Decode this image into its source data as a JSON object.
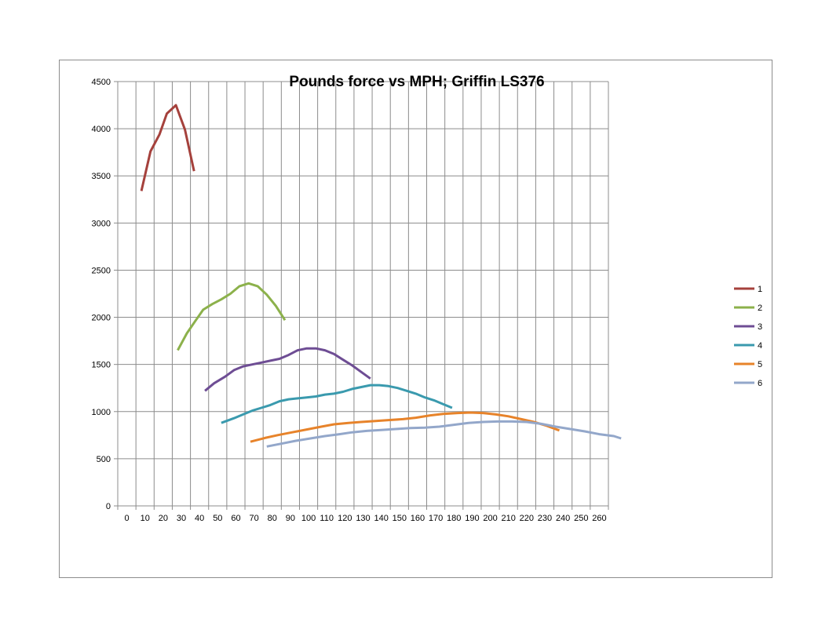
{
  "chart_data": {
    "type": "line",
    "title": "Pounds force vs MPH; Griffin LS376",
    "xlabel": "",
    "ylabel": "",
    "xlim": [
      0,
      270
    ],
    "ylim": [
      0,
      4500
    ],
    "x_ticks": [
      0,
      10,
      20,
      30,
      40,
      50,
      60,
      70,
      80,
      90,
      100,
      110,
      120,
      130,
      140,
      150,
      160,
      170,
      180,
      190,
      200,
      210,
      220,
      230,
      240,
      250,
      260
    ],
    "y_ticks": [
      0,
      500,
      1000,
      1500,
      2000,
      2500,
      3000,
      3500,
      4000,
      4500
    ],
    "grid": true,
    "legend_position": "right",
    "series": [
      {
        "name": "1",
        "color": "#A5413C",
        "points": [
          [
            13,
            3340
          ],
          [
            18,
            3760
          ],
          [
            23,
            3940
          ],
          [
            27,
            4160
          ],
          [
            32,
            4250
          ],
          [
            37,
            3990
          ],
          [
            42,
            3550
          ]
        ]
      },
      {
        "name": "2",
        "color": "#8CB14B",
        "points": [
          [
            33,
            1650
          ],
          [
            38,
            1830
          ],
          [
            43,
            1970
          ],
          [
            47,
            2080
          ],
          [
            52,
            2140
          ],
          [
            57,
            2190
          ],
          [
            62,
            2250
          ],
          [
            67,
            2330
          ],
          [
            72,
            2360
          ],
          [
            77,
            2330
          ],
          [
            82,
            2240
          ],
          [
            87,
            2120
          ],
          [
            92,
            1970
          ]
        ]
      },
      {
        "name": "3",
        "color": "#6E4D94",
        "points": [
          [
            48,
            1220
          ],
          [
            53,
            1300
          ],
          [
            59,
            1370
          ],
          [
            64,
            1440
          ],
          [
            69,
            1480
          ],
          [
            74,
            1500
          ],
          [
            79,
            1520
          ],
          [
            84,
            1540
          ],
          [
            89,
            1560
          ],
          [
            94,
            1600
          ],
          [
            99,
            1650
          ],
          [
            104,
            1670
          ],
          [
            109,
            1670
          ],
          [
            114,
            1650
          ],
          [
            119,
            1610
          ],
          [
            124,
            1550
          ],
          [
            129,
            1490
          ],
          [
            134,
            1420
          ],
          [
            139,
            1350
          ]
        ]
      },
      {
        "name": "4",
        "color": "#3A9AAE",
        "points": [
          [
            57,
            880
          ],
          [
            64,
            930
          ],
          [
            69,
            970
          ],
          [
            74,
            1010
          ],
          [
            79,
            1040
          ],
          [
            84,
            1070
          ],
          [
            89,
            1110
          ],
          [
            94,
            1130
          ],
          [
            99,
            1140
          ],
          [
            104,
            1150
          ],
          [
            109,
            1160
          ],
          [
            114,
            1180
          ],
          [
            119,
            1190
          ],
          [
            124,
            1210
          ],
          [
            129,
            1240
          ],
          [
            134,
            1260
          ],
          [
            139,
            1280
          ],
          [
            144,
            1280
          ],
          [
            149,
            1270
          ],
          [
            154,
            1250
          ],
          [
            159,
            1220
          ],
          [
            164,
            1190
          ],
          [
            169,
            1150
          ],
          [
            174,
            1120
          ],
          [
            179,
            1080
          ],
          [
            184,
            1040
          ]
        ]
      },
      {
        "name": "5",
        "color": "#E7832A",
        "points": [
          [
            73,
            680
          ],
          [
            81,
            720
          ],
          [
            88,
            750
          ],
          [
            96,
            780
          ],
          [
            104,
            810
          ],
          [
            112,
            840
          ],
          [
            119,
            865
          ],
          [
            127,
            880
          ],
          [
            134,
            890
          ],
          [
            142,
            900
          ],
          [
            149,
            910
          ],
          [
            157,
            920
          ],
          [
            164,
            935
          ],
          [
            172,
            960
          ],
          [
            179,
            975
          ],
          [
            187,
            985
          ],
          [
            194,
            990
          ],
          [
            201,
            985
          ],
          [
            208,
            970
          ],
          [
            215,
            950
          ],
          [
            222,
            920
          ],
          [
            229,
            890
          ],
          [
            236,
            850
          ],
          [
            243,
            800
          ]
        ]
      },
      {
        "name": "6",
        "color": "#93A7CA",
        "points": [
          [
            82,
            630
          ],
          [
            90,
            660
          ],
          [
            98,
            690
          ],
          [
            106,
            715
          ],
          [
            114,
            740
          ],
          [
            122,
            760
          ],
          [
            129,
            780
          ],
          [
            137,
            795
          ],
          [
            145,
            805
          ],
          [
            153,
            815
          ],
          [
            161,
            825
          ],
          [
            169,
            830
          ],
          [
            177,
            840
          ],
          [
            185,
            860
          ],
          [
            193,
            880
          ],
          [
            201,
            890
          ],
          [
            209,
            895
          ],
          [
            217,
            895
          ],
          [
            225,
            890
          ],
          [
            233,
            870
          ],
          [
            241,
            840
          ],
          [
            249,
            815
          ],
          [
            257,
            790
          ],
          [
            265,
            760
          ],
          [
            273,
            740
          ],
          [
            277,
            715
          ]
        ]
      }
    ]
  }
}
